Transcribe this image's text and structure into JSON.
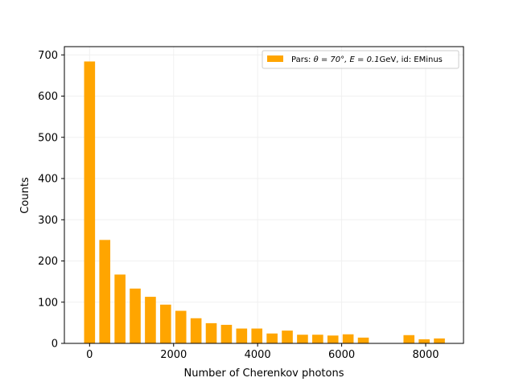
{
  "chart_data": {
    "type": "bar",
    "title": "",
    "xlabel": "Number of Cherenkov photons",
    "ylabel": "Counts",
    "xlim": [
      -600,
      8900
    ],
    "ylim": [
      0,
      720
    ],
    "xticks": [
      0,
      2000,
      4000,
      6000,
      8000
    ],
    "yticks": [
      0,
      100,
      200,
      300,
      400,
      500,
      600,
      700
    ],
    "grid": true,
    "legend_position": "top-right",
    "bar_color": "#ffa500",
    "series": [
      {
        "name_prefix": "Pars: ",
        "name_math": "θ = 70°, E = 0.1",
        "name_suffix": "GeV, id: EMinus",
        "bin_width": 362,
        "bins": [
          {
            "x": 0,
            "count": 684
          },
          {
            "x": 362,
            "count": 251
          },
          {
            "x": 724,
            "count": 167
          },
          {
            "x": 1086,
            "count": 133
          },
          {
            "x": 1448,
            "count": 113
          },
          {
            "x": 1810,
            "count": 94
          },
          {
            "x": 2172,
            "count": 79
          },
          {
            "x": 2534,
            "count": 61
          },
          {
            "x": 2896,
            "count": 49
          },
          {
            "x": 3258,
            "count": 45
          },
          {
            "x": 3620,
            "count": 36
          },
          {
            "x": 3982,
            "count": 36
          },
          {
            "x": 4344,
            "count": 24
          },
          {
            "x": 4706,
            "count": 31
          },
          {
            "x": 5068,
            "count": 21
          },
          {
            "x": 5430,
            "count": 21
          },
          {
            "x": 5792,
            "count": 19
          },
          {
            "x": 6154,
            "count": 22
          },
          {
            "x": 6516,
            "count": 14
          },
          {
            "x": 7602,
            "count": 20
          },
          {
            "x": 7964,
            "count": 10
          },
          {
            "x": 8326,
            "count": 12
          }
        ]
      }
    ]
  }
}
